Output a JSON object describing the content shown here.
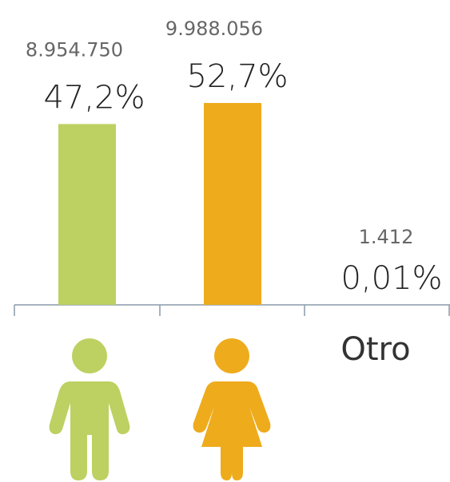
{
  "chart_data": {
    "type": "bar",
    "categories": [
      null,
      null,
      "Otro"
    ],
    "values": [
      47.2,
      52.7,
      0.01
    ],
    "value_labels": [
      "47,2%",
      "52,7%",
      "0,01%"
    ],
    "count_labels": [
      "8.954.750",
      "9.988.056",
      "1.412"
    ],
    "colors": [
      "#bcd161",
      "#eeab1c",
      "#8a9aa8"
    ]
  }
}
